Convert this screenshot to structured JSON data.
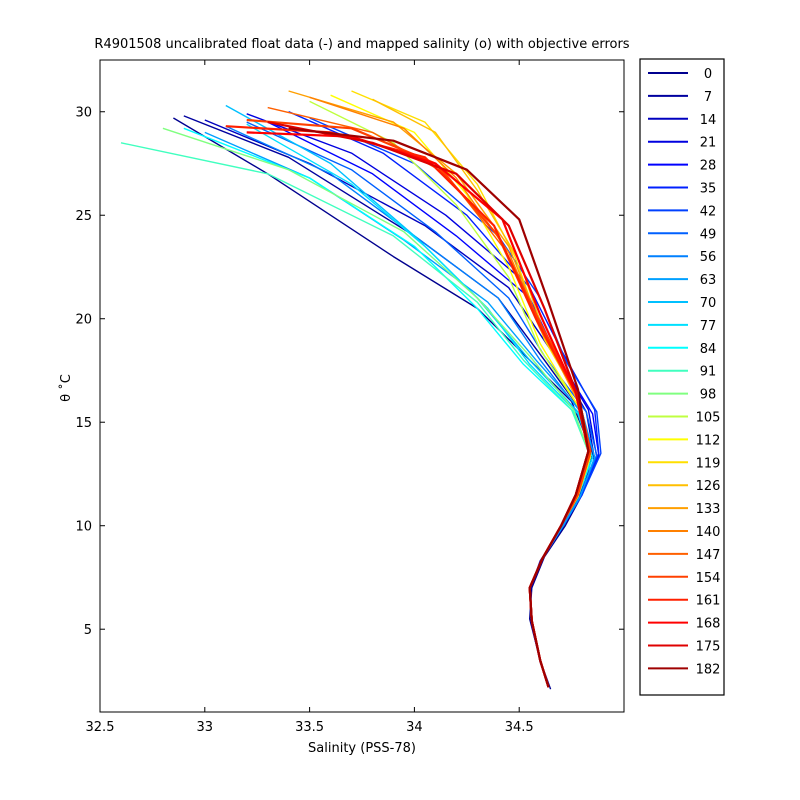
{
  "chart_data": {
    "type": "line",
    "title": "R4901508 uncalibrated float data (-) and mapped salinity (o) with objective errors",
    "xlabel": "Salinity (PSS-78)",
    "ylabel": "θ ˚C",
    "xlim": [
      32.5,
      35.0
    ],
    "ylim": [
      1.0,
      32.5
    ],
    "x_ticks": [
      32.5,
      33,
      33.5,
      34,
      34.5
    ],
    "y_ticks": [
      5,
      10,
      15,
      20,
      25,
      30
    ],
    "x_tick_labels": [
      "32.5",
      "33",
      "33.5",
      "34",
      "34.5"
    ],
    "y_tick_labels": [
      "5",
      "10",
      "15",
      "20",
      "25",
      "30"
    ],
    "grid": false,
    "legend_position": "outside-right",
    "colormap": "jet",
    "series": [
      {
        "name": "0",
        "color": "#00008f",
        "x": [
          32.85,
          33.3,
          33.9,
          34.3,
          34.55,
          34.75,
          34.85,
          34.8,
          34.72,
          34.62,
          34.56,
          34.55,
          34.6,
          34.65
        ],
        "y": [
          29.7,
          27.0,
          23.0,
          20.5,
          18.0,
          16.0,
          13.5,
          11.5,
          10.0,
          8.5,
          7.0,
          5.5,
          3.5,
          2.1
        ]
      },
      {
        "name": "7",
        "color": "#00009f",
        "x": [
          32.9,
          33.4,
          34.0,
          34.4,
          34.62,
          34.8,
          34.86,
          34.78,
          34.7,
          34.6,
          34.55,
          34.56,
          34.6,
          34.64
        ],
        "y": [
          29.8,
          27.8,
          24.0,
          21.0,
          18.0,
          15.5,
          13.0,
          11.2,
          9.8,
          8.2,
          6.8,
          5.2,
          3.4,
          2.2
        ]
      },
      {
        "name": "14",
        "color": "#0000bf",
        "x": [
          33.0,
          33.5,
          34.05,
          34.45,
          34.65,
          34.82,
          34.86,
          34.78,
          34.7,
          34.6,
          34.55,
          34.56,
          34.6,
          34.64
        ],
        "y": [
          29.6,
          27.5,
          24.5,
          21.5,
          18.5,
          15.5,
          13.2,
          11.3,
          9.9,
          8.3,
          6.9,
          5.3,
          3.5,
          2.2
        ]
      },
      {
        "name": "21",
        "color": "#0000df",
        "x": [
          33.2,
          33.7,
          34.15,
          34.5,
          34.66,
          34.83,
          34.87,
          34.79,
          34.71,
          34.61,
          34.55,
          34.56,
          34.6,
          34.64
        ],
        "y": [
          29.9,
          28.0,
          25.0,
          22.0,
          18.5,
          15.6,
          13.3,
          11.4,
          10.0,
          8.4,
          7.0,
          5.4,
          3.5,
          2.2
        ]
      },
      {
        "name": "28",
        "color": "#0000ff",
        "x": [
          33.3,
          33.8,
          34.2,
          34.55,
          34.68,
          34.85,
          34.88,
          34.8,
          34.71,
          34.61,
          34.55,
          34.56,
          34.6,
          34.64
        ],
        "y": [
          29.5,
          27.0,
          24.0,
          21.0,
          18.2,
          15.4,
          13.4,
          11.5,
          10.0,
          8.4,
          7.0,
          5.4,
          3.5,
          2.2
        ]
      },
      {
        "name": "35",
        "color": "#0020ff",
        "x": [
          33.4,
          33.85,
          34.25,
          34.55,
          34.7,
          34.86,
          34.88,
          34.8,
          34.71,
          34.61,
          34.55,
          34.56,
          34.6,
          34.64
        ],
        "y": [
          30.0,
          28.0,
          25.0,
          21.5,
          18.5,
          15.6,
          13.5,
          11.5,
          10.0,
          8.4,
          7.0,
          5.4,
          3.5,
          2.2
        ]
      },
      {
        "name": "42",
        "color": "#0040ff",
        "x": [
          33.5,
          34.0,
          34.4,
          34.6,
          34.72,
          34.87,
          34.89,
          34.8,
          34.71,
          34.61,
          34.55,
          34.56,
          34.6,
          34.64
        ],
        "y": [
          29.7,
          27.5,
          24.0,
          21.0,
          18.0,
          15.5,
          13.5,
          11.5,
          10.0,
          8.4,
          7.0,
          5.4,
          3.5,
          2.2
        ]
      },
      {
        "name": "49",
        "color": "#0060ff",
        "x": [
          33.2,
          33.7,
          34.1,
          34.45,
          34.62,
          34.82,
          34.87,
          34.79,
          34.71,
          34.61,
          34.55,
          34.56,
          34.6,
          34.64
        ],
        "y": [
          29.5,
          27.2,
          24.2,
          21.0,
          18.2,
          15.5,
          13.4,
          11.4,
          10.0,
          8.4,
          7.0,
          5.4,
          3.5,
          2.2
        ]
      },
      {
        "name": "56",
        "color": "#0080ff",
        "x": [
          33.1,
          33.6,
          34.0,
          34.4,
          34.6,
          34.8,
          34.86,
          34.79,
          34.71,
          34.61,
          34.55,
          34.56,
          34.6,
          34.64
        ],
        "y": [
          29.3,
          27.0,
          24.0,
          21.0,
          18.0,
          15.4,
          13.3,
          11.4,
          10.0,
          8.4,
          7.0,
          5.4,
          3.5,
          2.2
        ]
      },
      {
        "name": "63",
        "color": "#00a0ff",
        "x": [
          33.0,
          33.5,
          33.95,
          34.35,
          34.58,
          34.8,
          34.86,
          34.79,
          34.71,
          34.61,
          34.55,
          34.56,
          34.6,
          34.64
        ],
        "y": [
          29.0,
          26.8,
          23.8,
          20.8,
          18.0,
          15.5,
          13.3,
          11.4,
          10.0,
          8.4,
          7.0,
          5.4,
          3.5,
          2.2
        ]
      },
      {
        "name": "70",
        "color": "#00c0ff",
        "x": [
          33.1,
          33.6,
          34.0,
          34.3,
          34.55,
          34.78,
          34.85,
          34.78,
          34.7,
          34.61,
          34.55,
          34.56,
          34.6,
          34.64
        ],
        "y": [
          30.3,
          27.5,
          24.0,
          21.0,
          18.0,
          15.5,
          13.3,
          11.4,
          10.0,
          8.4,
          7.0,
          5.4,
          3.5,
          2.2
        ]
      },
      {
        "name": "77",
        "color": "#00e0ff",
        "x": [
          33.2,
          33.7,
          34.05,
          34.35,
          34.55,
          34.78,
          34.85,
          34.78,
          34.7,
          34.61,
          34.55,
          34.56,
          34.6,
          34.64
        ],
        "y": [
          29.4,
          26.5,
          23.5,
          20.5,
          17.8,
          15.4,
          13.3,
          11.4,
          10.0,
          8.4,
          7.0,
          5.4,
          3.5,
          2.2
        ]
      },
      {
        "name": "84",
        "color": "#00ffff",
        "x": [
          32.9,
          33.5,
          34.0,
          34.3,
          34.52,
          34.76,
          34.84,
          34.78,
          34.7,
          34.61,
          34.55,
          34.56,
          34.6,
          34.64
        ],
        "y": [
          29.2,
          26.8,
          23.5,
          20.5,
          17.8,
          15.5,
          13.3,
          11.4,
          10.0,
          8.4,
          7.0,
          5.4,
          3.5,
          2.2
        ]
      },
      {
        "name": "91",
        "color": "#40ffbf",
        "x": [
          32.6,
          33.3,
          33.9,
          34.3,
          34.52,
          34.75,
          34.84,
          34.78,
          34.7,
          34.61,
          34.55,
          34.56,
          34.6,
          34.64
        ],
        "y": [
          28.5,
          27.0,
          24.0,
          20.8,
          18.0,
          15.6,
          13.3,
          11.4,
          10.0,
          8.4,
          7.0,
          5.4,
          3.5,
          2.2
        ]
      },
      {
        "name": "98",
        "color": "#80ff80",
        "x": [
          32.8,
          33.4,
          33.95,
          34.3,
          34.55,
          34.76,
          34.84,
          34.78,
          34.7,
          34.61,
          34.55,
          34.56,
          34.6,
          34.64
        ],
        "y": [
          29.2,
          27.2,
          24.2,
          21.0,
          18.2,
          15.6,
          13.3,
          11.4,
          10.0,
          8.4,
          7.0,
          5.4,
          3.5,
          2.2
        ]
      },
      {
        "name": "105",
        "color": "#bfff40",
        "x": [
          33.5,
          33.9,
          34.2,
          34.45,
          34.6,
          34.78,
          34.84,
          34.78,
          34.7,
          34.61,
          34.55,
          34.56,
          34.6,
          34.64
        ],
        "y": [
          30.5,
          28.5,
          25.5,
          22.0,
          18.5,
          15.8,
          13.4,
          11.4,
          10.0,
          8.4,
          7.0,
          5.4,
          3.5,
          2.2
        ]
      },
      {
        "name": "112",
        "color": "#ffff00",
        "x": [
          33.6,
          34.0,
          34.25,
          34.45,
          34.6,
          34.78,
          34.84,
          34.78,
          34.7,
          34.61,
          34.55,
          34.56,
          34.6,
          34.64
        ],
        "y": [
          30.8,
          29.0,
          26.0,
          22.5,
          18.8,
          15.8,
          13.4,
          11.4,
          10.0,
          8.4,
          7.0,
          5.4,
          3.5,
          2.2
        ]
      },
      {
        "name": "119",
        "color": "#ffdf00",
        "x": [
          33.7,
          34.05,
          34.3,
          34.48,
          34.62,
          34.79,
          34.84,
          34.78,
          34.7,
          34.61,
          34.55,
          34.56,
          34.6,
          34.64
        ],
        "y": [
          31.0,
          29.5,
          26.5,
          23.0,
          19.0,
          16.0,
          13.5,
          11.5,
          10.0,
          8.4,
          7.0,
          5.4,
          3.5,
          2.2
        ]
      },
      {
        "name": "126",
        "color": "#ffbf00",
        "x": [
          33.8,
          34.1,
          34.3,
          34.5,
          34.63,
          34.79,
          34.84,
          34.78,
          34.7,
          34.61,
          34.55,
          34.56,
          34.6,
          34.64
        ],
        "y": [
          30.6,
          29.0,
          26.2,
          22.8,
          19.0,
          16.0,
          13.5,
          11.5,
          10.0,
          8.4,
          7.0,
          5.4,
          3.5,
          2.2
        ]
      },
      {
        "name": "133",
        "color": "#ff9f00",
        "x": [
          33.4,
          33.9,
          34.2,
          34.45,
          34.62,
          34.78,
          34.84,
          34.78,
          34.7,
          34.61,
          34.55,
          34.56,
          34.6,
          34.64
        ],
        "y": [
          31.0,
          29.5,
          27.0,
          23.5,
          19.2,
          16.0,
          13.5,
          11.5,
          10.0,
          8.4,
          7.0,
          5.4,
          3.5,
          2.2
        ]
      },
      {
        "name": "140",
        "color": "#ff8000",
        "x": [
          33.5,
          33.95,
          34.2,
          34.45,
          34.62,
          34.79,
          34.84,
          34.78,
          34.7,
          34.61,
          34.55,
          34.56,
          34.6,
          34.64
        ],
        "y": [
          30.7,
          29.2,
          26.8,
          23.2,
          19.2,
          16.0,
          13.5,
          11.5,
          10.0,
          8.4,
          7.0,
          5.4,
          3.5,
          2.2
        ]
      },
      {
        "name": "147",
        "color": "#ff6000",
        "x": [
          33.3,
          33.8,
          34.15,
          34.42,
          34.6,
          34.78,
          34.84,
          34.78,
          34.7,
          34.61,
          34.55,
          34.56,
          34.6,
          34.64
        ],
        "y": [
          30.2,
          29.0,
          27.0,
          23.5,
          19.5,
          16.2,
          13.6,
          11.5,
          10.0,
          8.4,
          7.0,
          5.4,
          3.5,
          2.2
        ]
      },
      {
        "name": "154",
        "color": "#ff4000",
        "x": [
          33.2,
          33.7,
          34.1,
          34.4,
          34.6,
          34.78,
          34.84,
          34.78,
          34.7,
          34.61,
          34.55,
          34.56,
          34.6,
          34.64
        ],
        "y": [
          29.6,
          29.2,
          27.5,
          24.0,
          19.8,
          16.3,
          13.6,
          11.5,
          10.0,
          8.4,
          7.0,
          5.4,
          3.5,
          2.2
        ]
      },
      {
        "name": "161",
        "color": "#ff2000",
        "x": [
          33.1,
          33.6,
          34.05,
          34.38,
          34.58,
          34.77,
          34.83,
          34.77,
          34.7,
          34.61,
          34.55,
          34.56,
          34.6,
          34.64
        ],
        "y": [
          29.3,
          29.0,
          27.8,
          24.5,
          20.0,
          16.4,
          13.6,
          11.5,
          10.0,
          8.4,
          7.0,
          5.4,
          3.5,
          2.2
        ]
      },
      {
        "name": "168",
        "color": "#ff0000",
        "x": [
          33.2,
          33.7,
          34.1,
          34.42,
          34.6,
          34.77,
          34.83,
          34.77,
          34.7,
          34.61,
          34.55,
          34.56,
          34.6,
          34.64
        ],
        "y": [
          29.0,
          28.8,
          27.5,
          24.8,
          20.2,
          16.4,
          13.6,
          11.5,
          10.0,
          8.4,
          7.0,
          5.4,
          3.5,
          2.2
        ]
      },
      {
        "name": "175",
        "color": "#df0000",
        "x": [
          33.3,
          33.8,
          34.2,
          34.45,
          34.62,
          34.77,
          34.83,
          34.77,
          34.7,
          34.61,
          34.55,
          34.56,
          34.6,
          34.64
        ],
        "y": [
          29.5,
          28.5,
          27.0,
          24.5,
          20.5,
          16.5,
          13.6,
          11.5,
          10.0,
          8.4,
          7.0,
          5.4,
          3.5,
          2.2
        ]
      },
      {
        "name": "182",
        "color": "#9f0000",
        "x": [
          33.4,
          33.9,
          34.25,
          34.5,
          34.64,
          34.78,
          34.83,
          34.77,
          34.7,
          34.61,
          34.55,
          34.56,
          34.6,
          34.64
        ],
        "y": [
          29.2,
          28.6,
          27.2,
          24.8,
          20.8,
          16.6,
          13.6,
          11.5,
          10.0,
          8.4,
          7.0,
          5.4,
          3.5,
          2.2
        ]
      }
    ]
  }
}
